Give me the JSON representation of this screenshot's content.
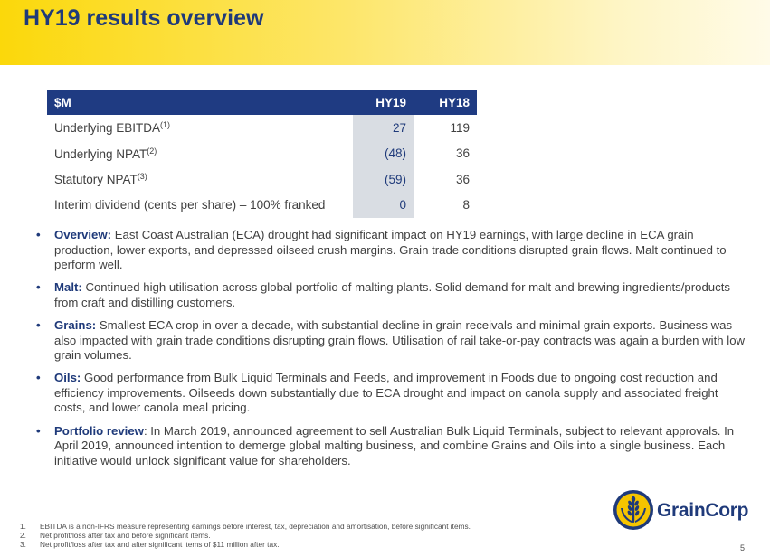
{
  "header": {
    "title": "HY19 results overview"
  },
  "table": {
    "columns": [
      "$M",
      "HY19",
      "HY18"
    ],
    "rows": [
      {
        "label": "Underlying EBITDA",
        "sup": "(1)",
        "hy19": "27",
        "hy18": "119"
      },
      {
        "label": "Underlying NPAT",
        "sup": "(2)",
        "hy19": "(48)",
        "hy18": "36"
      },
      {
        "label": "Statutory NPAT",
        "sup": "(3)",
        "hy19": "(59)",
        "hy18": "36"
      },
      {
        "label": "Interim dividend (cents per share) – 100% franked",
        "sup": "",
        "hy19": "0",
        "hy18": "8"
      }
    ]
  },
  "bullets": [
    {
      "heading": "Overview:",
      "text": " East Coast Australian (ECA) drought had significant impact on HY19 earnings, with large decline in ECA grain production, lower exports, and depressed oilseed crush margins. Grain trade conditions disrupted grain flows. Malt continued to perform well."
    },
    {
      "heading": "Malt:",
      "text": " Continued high utilisation across global portfolio of malting plants. Solid demand for malt and brewing ingredients/products from craft and distilling customers."
    },
    {
      "heading": "Grains:",
      "text": " Smallest ECA crop in over a decade, with substantial decline in grain receivals and minimal grain exports. Business was also impacted with grain trade conditions disrupting grain flows. Utilisation of rail take-or-pay contracts was again a burden with low grain volumes."
    },
    {
      "heading": "Oils:",
      "text": " Good performance from Bulk Liquid Terminals and Feeds, and improvement in Foods due to ongoing cost reduction and efficiency improvements. Oilseeds down substantially due to ECA drought and impact on canola supply and associated freight costs, and lower canola meal pricing."
    },
    {
      "heading": "Portfolio review",
      "text": ": In March 2019, announced agreement to sell Australian Bulk Liquid Terminals, subject to relevant approvals. In April 2019, announced intention to demerge global malting business, and combine Grains and Oils into a single business. Each initiative would unlock significant value for shareholders."
    }
  ],
  "bullet_glyph": "•",
  "footnotes": [
    {
      "num": "1.",
      "text": "EBITDA is a non-IFRS measure representing earnings before interest, tax, depreciation and amortisation, before significant items."
    },
    {
      "num": "2.",
      "text": "Net profit/loss after tax and before significant items."
    },
    {
      "num": "3.",
      "text": "Net profit/loss after tax and after significant items of $11 million after tax."
    }
  ],
  "logo": {
    "text": "GrainCorp",
    "icon": "wheat-emblem-icon",
    "brand_color": "#1f3a7a",
    "accent_color": "#f5c400"
  },
  "page_number": "5"
}
